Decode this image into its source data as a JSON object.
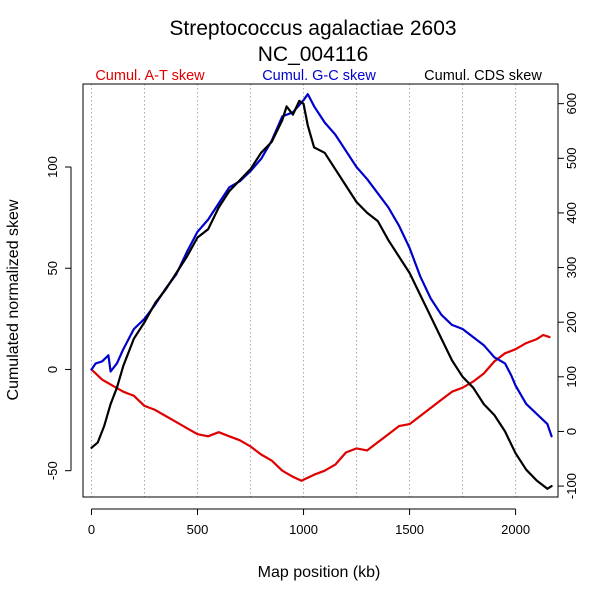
{
  "chart_data": {
    "type": "line",
    "title": "Streptococcus agalactiae 2603",
    "subtitle": "NC_004116",
    "xlabel": "Map position (kb)",
    "ylabel": "Cumulated normalized skew",
    "xlim": [
      -40,
      2200
    ],
    "ylim": [
      -63,
      141
    ],
    "y2lim": [
      -120,
      636
    ],
    "x_ticks": [
      0,
      500,
      1000,
      1500,
      2000
    ],
    "y_ticks": [
      -50,
      0,
      50,
      100
    ],
    "y2_ticks": [
      -100,
      0,
      100,
      200,
      300,
      400,
      500,
      600
    ],
    "vgrid": [
      0,
      250,
      500,
      750,
      1000,
      1250,
      1500,
      1750,
      2000
    ],
    "grid": "vertical dotted lines every 250 kb",
    "legend_position": "top",
    "series": [
      {
        "name": "Cumul. A-T skew",
        "axis": "left",
        "color": "#e00000",
        "points": [
          [
            0,
            0
          ],
          [
            50,
            -5
          ],
          [
            100,
            -8
          ],
          [
            150,
            -11
          ],
          [
            200,
            -13
          ],
          [
            250,
            -18
          ],
          [
            300,
            -20
          ],
          [
            350,
            -23
          ],
          [
            400,
            -26
          ],
          [
            450,
            -29
          ],
          [
            500,
            -32
          ],
          [
            550,
            -33
          ],
          [
            600,
            -31
          ],
          [
            650,
            -33
          ],
          [
            700,
            -35
          ],
          [
            750,
            -38
          ],
          [
            800,
            -42
          ],
          [
            850,
            -45
          ],
          [
            900,
            -50
          ],
          [
            950,
            -53
          ],
          [
            990,
            -55
          ],
          [
            1050,
            -52
          ],
          [
            1100,
            -50
          ],
          [
            1150,
            -47
          ],
          [
            1200,
            -41
          ],
          [
            1250,
            -39
          ],
          [
            1300,
            -40
          ],
          [
            1350,
            -36
          ],
          [
            1400,
            -32
          ],
          [
            1450,
            -28
          ],
          [
            1500,
            -27
          ],
          [
            1550,
            -23
          ],
          [
            1600,
            -19
          ],
          [
            1650,
            -15
          ],
          [
            1700,
            -11
          ],
          [
            1750,
            -9
          ],
          [
            1800,
            -6
          ],
          [
            1850,
            -2
          ],
          [
            1900,
            4
          ],
          [
            1950,
            8
          ],
          [
            2000,
            10
          ],
          [
            2050,
            13
          ],
          [
            2100,
            15
          ],
          [
            2130,
            17
          ],
          [
            2160,
            16
          ]
        ]
      },
      {
        "name": "Cumul. G-C skew",
        "axis": "left",
        "color": "#0000cc",
        "points": [
          [
            0,
            0
          ],
          [
            20,
            3
          ],
          [
            50,
            4
          ],
          [
            80,
            7
          ],
          [
            90,
            -1
          ],
          [
            120,
            3
          ],
          [
            150,
            10
          ],
          [
            200,
            20
          ],
          [
            250,
            25
          ],
          [
            300,
            32
          ],
          [
            350,
            40
          ],
          [
            400,
            47
          ],
          [
            450,
            58
          ],
          [
            500,
            68
          ],
          [
            550,
            74
          ],
          [
            600,
            82
          ],
          [
            650,
            90
          ],
          [
            700,
            93
          ],
          [
            750,
            98
          ],
          [
            800,
            104
          ],
          [
            850,
            113
          ],
          [
            900,
            125
          ],
          [
            950,
            127
          ],
          [
            1000,
            133
          ],
          [
            1020,
            136
          ],
          [
            1050,
            130
          ],
          [
            1100,
            122
          ],
          [
            1150,
            116
          ],
          [
            1200,
            108
          ],
          [
            1250,
            100
          ],
          [
            1300,
            94
          ],
          [
            1350,
            87
          ],
          [
            1400,
            80
          ],
          [
            1450,
            71
          ],
          [
            1500,
            60
          ],
          [
            1550,
            46
          ],
          [
            1600,
            35
          ],
          [
            1650,
            27
          ],
          [
            1700,
            22
          ],
          [
            1750,
            20
          ],
          [
            1800,
            16
          ],
          [
            1850,
            12
          ],
          [
            1900,
            6
          ],
          [
            1950,
            3
          ],
          [
            1980,
            -3
          ],
          [
            2000,
            -8
          ],
          [
            2050,
            -17
          ],
          [
            2100,
            -22
          ],
          [
            2150,
            -27
          ],
          [
            2170,
            -33
          ]
        ]
      },
      {
        "name": "Cumul. CDS skew",
        "axis": "right",
        "color": "#000000",
        "points": [
          [
            0,
            -30
          ],
          [
            30,
            -20
          ],
          [
            60,
            10
          ],
          [
            90,
            50
          ],
          [
            120,
            80
          ],
          [
            150,
            120
          ],
          [
            200,
            170
          ],
          [
            250,
            200
          ],
          [
            300,
            235
          ],
          [
            350,
            260
          ],
          [
            400,
            290
          ],
          [
            450,
            320
          ],
          [
            500,
            355
          ],
          [
            550,
            370
          ],
          [
            600,
            410
          ],
          [
            650,
            440
          ],
          [
            700,
            460
          ],
          [
            750,
            480
          ],
          [
            800,
            510
          ],
          [
            850,
            530
          ],
          [
            900,
            570
          ],
          [
            920,
            595
          ],
          [
            950,
            580
          ],
          [
            980,
            605
          ],
          [
            1000,
            600
          ],
          [
            1020,
            560
          ],
          [
            1050,
            520
          ],
          [
            1100,
            510
          ],
          [
            1150,
            480
          ],
          [
            1200,
            450
          ],
          [
            1250,
            420
          ],
          [
            1300,
            400
          ],
          [
            1350,
            385
          ],
          [
            1400,
            350
          ],
          [
            1450,
            320
          ],
          [
            1500,
            290
          ],
          [
            1550,
            250
          ],
          [
            1600,
            210
          ],
          [
            1650,
            170
          ],
          [
            1700,
            130
          ],
          [
            1750,
            100
          ],
          [
            1800,
            80
          ],
          [
            1850,
            50
          ],
          [
            1900,
            30
          ],
          [
            1950,
            0
          ],
          [
            2000,
            -40
          ],
          [
            2050,
            -70
          ],
          [
            2100,
            -90
          ],
          [
            2150,
            -105
          ],
          [
            2170,
            -100
          ]
        ]
      }
    ]
  }
}
